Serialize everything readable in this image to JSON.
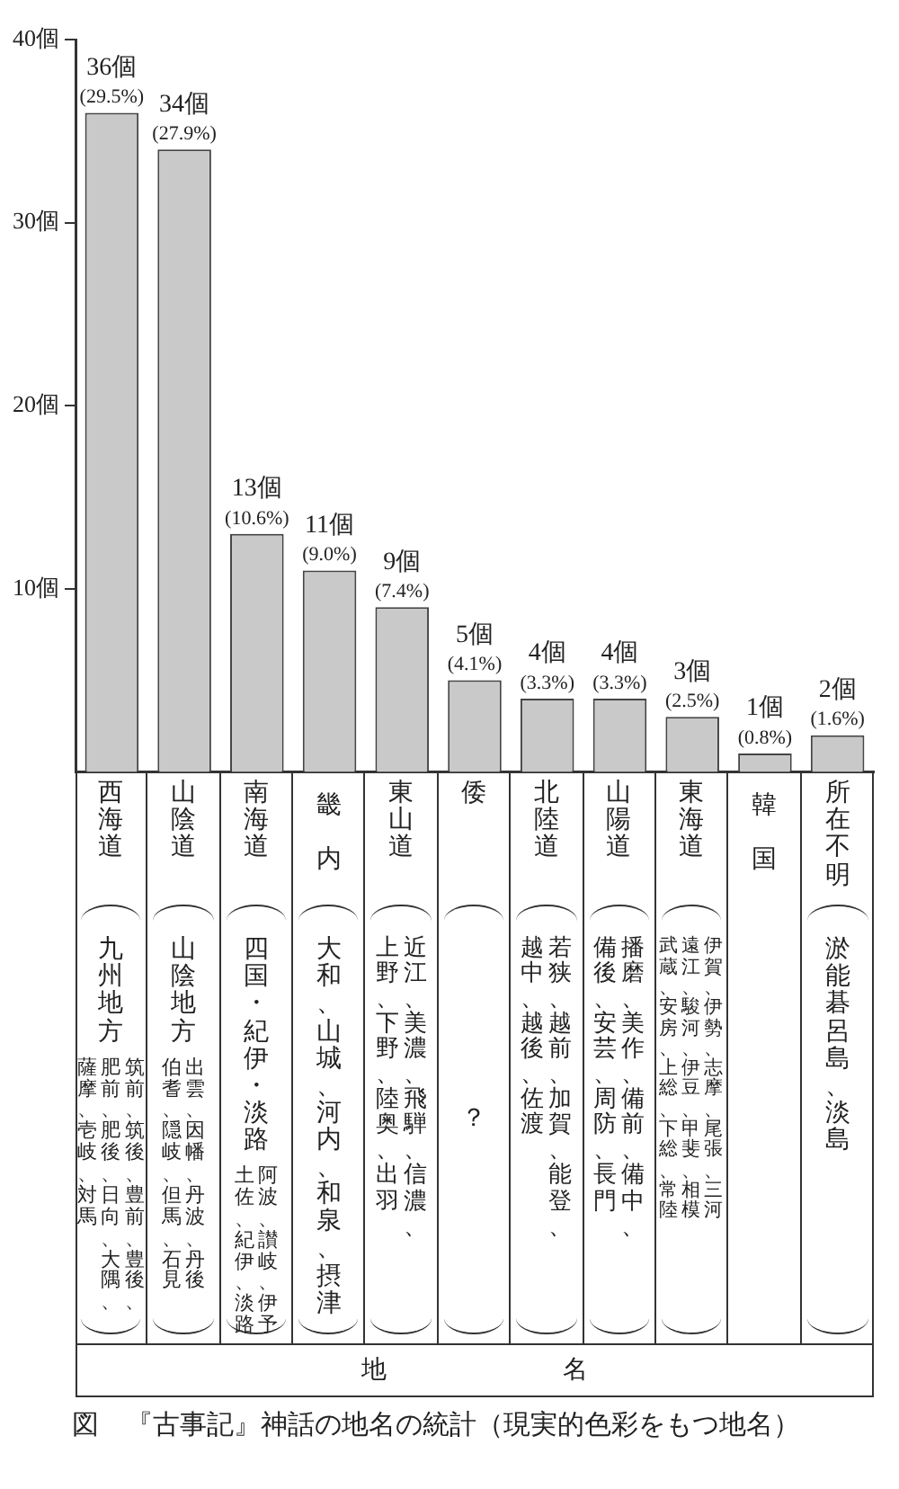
{
  "chart_data": {
    "type": "bar",
    "title": "図　『古事記』神話の地名の統計（現実的色彩をもつ地名）",
    "categories": [
      "西海道",
      "山陰道",
      "南海道",
      "畿内",
      "東山道",
      "倭",
      "北陸道",
      "山陽道",
      "東海道",
      "韓国",
      "所在不明"
    ],
    "values": [
      36,
      34,
      13,
      11,
      9,
      5,
      4,
      4,
      3,
      1,
      2
    ],
    "value_labels": [
      "36個\n(29.5%)",
      "34個\n(27.9%)",
      "13個\n(10.6%)",
      "11個\n(9.0%)",
      "9個\n(7.4%)",
      "5個\n(4.1%)",
      "4個\n(3.3%)",
      "4個\n(3.3%)",
      "3個\n(2.5%)",
      "1個\n(0.8%)",
      "2個\n(1.6%)"
    ],
    "color": "#c9c9c9",
    "ylim": [
      0,
      40
    ],
    "yticks": [
      {
        "value": 10,
        "label": "10個"
      },
      {
        "value": 20,
        "label": "20個"
      },
      {
        "value": 30,
        "label": "30個"
      },
      {
        "value": 40,
        "label": "40個"
      }
    ],
    "grid": false,
    "legend": false,
    "annotations": [
      "九州地方",
      "筑前、筑後、豊前、豊後、",
      "肥前、肥後、日向、大隅、",
      "薩摩、壱岐、対馬",
      "山陰地方",
      "出雲、因幡、丹波、丹後",
      "伯耆、隠岐、但馬、石見",
      "四国・紀伊・淡路",
      "阿波、讃岐、伊予",
      "土佐、紀伊、淡路",
      "大和、山城、河内、和泉、摂津",
      "近江、美濃、飛騨、信濃、",
      "上野、下野、陸奥、出羽",
      "？",
      "若狭、越前、加賀、能登、",
      "越中、越後、佐渡",
      "播磨、美作、備前、備中、",
      "備後、安芸、周防、長門",
      "伊賀、伊勢、志摩、尾張、三河",
      "遠江、駿河、伊豆、甲斐、相模",
      "武蔵、安房、上総、下総、常陸",
      "淤能碁呂島、淡島",
      "地名"
    ]
  }
}
